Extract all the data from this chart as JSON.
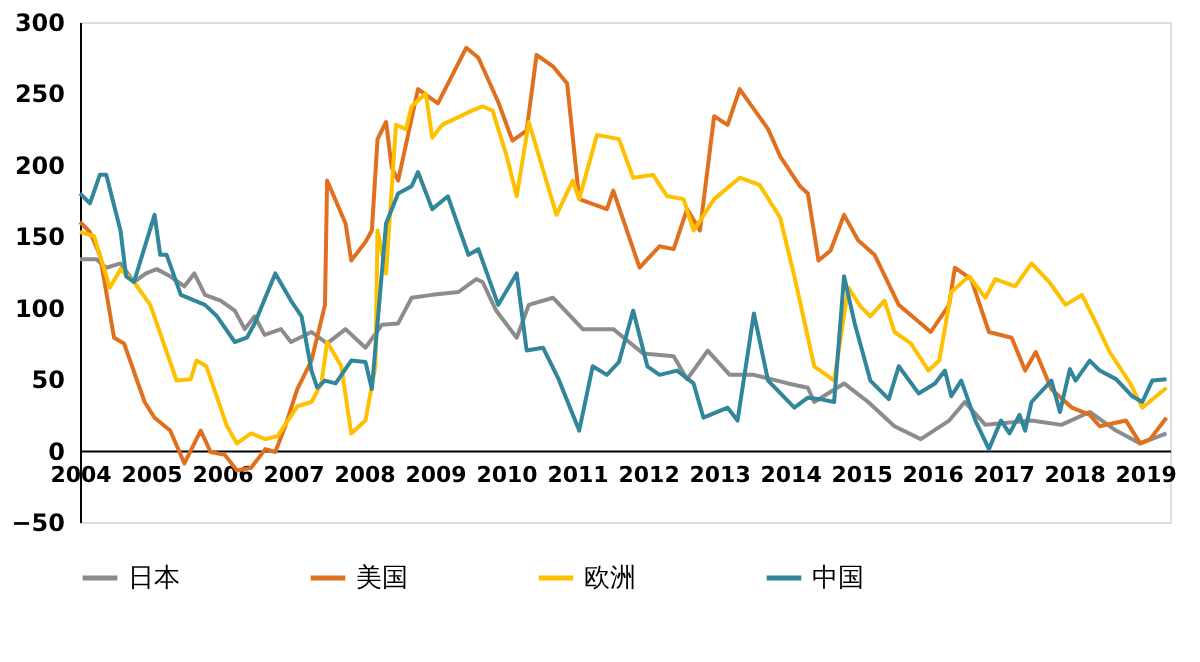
{
  "chart_data": {
    "type": "line",
    "legend": "bottom",
    "grid": false,
    "line_style": "solid",
    "marker": "none",
    "xlim": [
      2004,
      2019.35
    ],
    "xticks": [
      2004,
      2005,
      2006,
      2007,
      2008,
      2009,
      2010,
      2011,
      2012,
      2013,
      2014,
      2015,
      2016,
      2017,
      2018,
      2019
    ],
    "ylim": [
      -50,
      300
    ],
    "yticks": [
      -50,
      0,
      50,
      100,
      150,
      200,
      250,
      300
    ],
    "series": [
      {
        "name": "日本",
        "color": "#8c8c8c",
        "x": [
          2004.0,
          2004.23,
          2004.37,
          2004.57,
          2004.76,
          2004.93,
          2005.08,
          2005.27,
          2005.47,
          2005.61,
          2005.76,
          2005.98,
          2006.18,
          2006.32,
          2006.46,
          2006.6,
          2006.83,
          2006.97,
          2007.26,
          2007.48,
          2007.74,
          2008.02,
          2008.25,
          2008.48,
          2008.67,
          2008.96,
          2009.33,
          2009.58,
          2009.67,
          2009.86,
          2010.15,
          2010.32,
          2010.66,
          2011.08,
          2011.51,
          2011.93,
          2012.36,
          2012.55,
          2012.84,
          2013.15,
          2013.49,
          2013.97,
          2014.25,
          2014.34,
          2014.76,
          2015.1,
          2015.47,
          2015.84,
          2016.24,
          2016.46,
          2016.75,
          2017.4,
          2017.82,
          2018.22,
          2018.59,
          2018.93,
          2019.3
        ],
        "values": [
          134,
          134,
          128,
          131,
          118,
          124,
          127,
          122,
          115,
          124,
          109,
          105,
          98,
          85,
          94,
          81,
          85,
          76,
          83,
          75,
          85,
          72,
          88,
          89,
          107,
          109,
          111,
          120,
          118,
          98,
          79,
          102,
          107,
          85,
          85,
          68,
          66,
          50,
          70,
          53,
          53,
          47,
          44,
          34,
          47,
          34,
          17,
          8,
          21,
          34,
          18,
          21,
          18,
          27,
          14,
          5,
          12
        ]
      },
      {
        "name": "美国",
        "color": "#e0701e",
        "x": [
          2004.0,
          2004.14,
          2004.28,
          2004.48,
          2004.62,
          2004.91,
          2005.05,
          2005.27,
          2005.47,
          2005.7,
          2005.84,
          2006.04,
          2006.21,
          2006.41,
          2006.61,
          2006.75,
          2006.89,
          2007.06,
          2007.26,
          2007.45,
          2007.48,
          2007.74,
          2007.82,
          2008.02,
          2008.11,
          2008.19,
          2008.31,
          2008.39,
          2008.48,
          2008.76,
          2009.04,
          2009.44,
          2009.61,
          2009.89,
          2010.09,
          2010.29,
          2010.43,
          2010.66,
          2010.86,
          2011.03,
          2011.42,
          2011.51,
          2011.88,
          2012.16,
          2012.36,
          2012.55,
          2012.73,
          2012.93,
          2013.12,
          2013.29,
          2013.69,
          2013.86,
          2014.14,
          2014.25,
          2014.4,
          2014.57,
          2014.76,
          2014.96,
          2015.19,
          2015.53,
          2015.84,
          2015.98,
          2016.24,
          2016.32,
          2016.55,
          2016.8,
          2017.12,
          2017.31,
          2017.46,
          2017.68,
          2017.97,
          2018.22,
          2018.36,
          2018.73,
          2018.93,
          2019.07,
          2019.3
        ],
        "values": [
          160,
          153,
          137,
          79,
          75,
          34,
          23,
          14,
          -9,
          14,
          -1,
          -3,
          -14,
          -12,
          1,
          -1,
          17,
          43,
          63,
          102,
          189,
          159,
          133,
          146,
          154,
          218,
          230,
          198,
          189,
          253,
          243,
          282,
          275,
          244,
          217,
          224,
          277,
          269,
          257,
          176,
          169,
          182,
          128,
          143,
          141,
          169,
          154,
          234,
          228,
          253,
          225,
          206,
          185,
          180,
          133,
          140,
          165,
          147,
          137,
          102,
          89,
          83,
          102,
          128,
          120,
          83,
          79,
          56,
          69,
          43,
          30,
          25,
          17,
          21,
          5,
          8,
          23
        ]
      },
      {
        "name": "欧洲",
        "color": "#ffc000",
        "x": [
          2004.0,
          2004.2,
          2004.42,
          2004.57,
          2004.76,
          2004.99,
          2005.27,
          2005.36,
          2005.56,
          2005.64,
          2005.78,
          2006.07,
          2006.21,
          2006.41,
          2006.61,
          2006.78,
          2007.06,
          2007.26,
          2007.4,
          2007.48,
          2007.68,
          2007.82,
          2008.02,
          2008.16,
          2008.19,
          2008.31,
          2008.45,
          2008.59,
          2008.67,
          2008.87,
          2008.96,
          2009.1,
          2009.52,
          2009.67,
          2009.81,
          2010.01,
          2010.15,
          2010.32,
          2010.71,
          2010.94,
          2011.03,
          2011.28,
          2011.59,
          2011.79,
          2012.07,
          2012.27,
          2012.5,
          2012.64,
          2012.93,
          2013.29,
          2013.57,
          2013.86,
          2014.06,
          2014.34,
          2014.62,
          2014.82,
          2014.99,
          2015.13,
          2015.33,
          2015.47,
          2015.7,
          2015.95,
          2016.1,
          2016.27,
          2016.52,
          2016.75,
          2016.89,
          2017.17,
          2017.4,
          2017.65,
          2017.88,
          2018.11,
          2018.31,
          2018.5,
          2018.79,
          2018.96,
          2019.3
        ],
        "values": [
          153,
          150,
          114,
          127,
          118,
          102,
          62,
          49,
          50,
          63,
          59,
          17,
          5,
          12,
          8,
          10,
          31,
          34,
          47,
          76,
          59,
          12,
          21,
          59,
          154,
          124,
          228,
          225,
          241,
          250,
          219,
          228,
          238,
          241,
          238,
          206,
          178,
          230,
          165,
          189,
          176,
          221,
          218,
          191,
          193,
          178,
          176,
          154,
          176,
          191,
          186,
          163,
          122,
          59,
          49,
          114,
          101,
          94,
          105,
          83,
          75,
          56,
          63,
          111,
          122,
          107,
          120,
          115,
          131,
          118,
          102,
          109,
          89,
          69,
          47,
          30,
          44
        ]
      },
      {
        "name": "中国",
        "color": "#31869b",
        "x": [
          2004.0,
          2004.14,
          2004.28,
          2004.37,
          2004.57,
          2004.65,
          2004.76,
          2005.05,
          2005.13,
          2005.22,
          2005.42,
          2005.76,
          2005.93,
          2006.18,
          2006.35,
          2006.46,
          2006.75,
          2006.97,
          2007.12,
          2007.26,
          2007.34,
          2007.45,
          2007.6,
          2007.82,
          2008.02,
          2008.11,
          2008.19,
          2008.31,
          2008.48,
          2008.67,
          2008.76,
          2008.96,
          2009.18,
          2009.47,
          2009.61,
          2009.89,
          2010.15,
          2010.29,
          2010.52,
          2010.74,
          2011.03,
          2011.22,
          2011.42,
          2011.59,
          2011.79,
          2011.99,
          2012.16,
          2012.41,
          2012.64,
          2012.78,
          2013.12,
          2013.26,
          2013.49,
          2013.69,
          2014.06,
          2014.25,
          2014.42,
          2014.62,
          2014.76,
          2014.91,
          2015.13,
          2015.39,
          2015.53,
          2015.81,
          2016.04,
          2016.18,
          2016.27,
          2016.41,
          2016.61,
          2016.8,
          2016.97,
          2017.09,
          2017.23,
          2017.31,
          2017.4,
          2017.68,
          2017.8,
          2017.94,
          2018.02,
          2018.22,
          2018.36,
          2018.59,
          2018.82,
          2018.96,
          2019.1,
          2019.3
        ],
        "values": [
          180,
          173,
          193,
          193,
          154,
          122,
          118,
          165,
          137,
          137,
          109,
          102,
          94,
          76,
          79,
          89,
          124,
          105,
          94,
          56,
          44,
          49,
          47,
          63,
          62,
          43,
          89,
          159,
          180,
          185,
          195,
          169,
          178,
          137,
          141,
          102,
          124,
          70,
          72,
          50,
          14,
          59,
          53,
          62,
          98,
          59,
          53,
          56,
          47,
          23,
          30,
          21,
          96,
          49,
          30,
          37,
          36,
          34,
          122,
          89,
          49,
          36,
          59,
          40,
          47,
          56,
          38,
          49,
          21,
          1,
          21,
          12,
          25,
          14,
          34,
          49,
          27,
          57,
          49,
          63,
          56,
          50,
          38,
          34,
          49,
          50
        ]
      }
    ]
  }
}
